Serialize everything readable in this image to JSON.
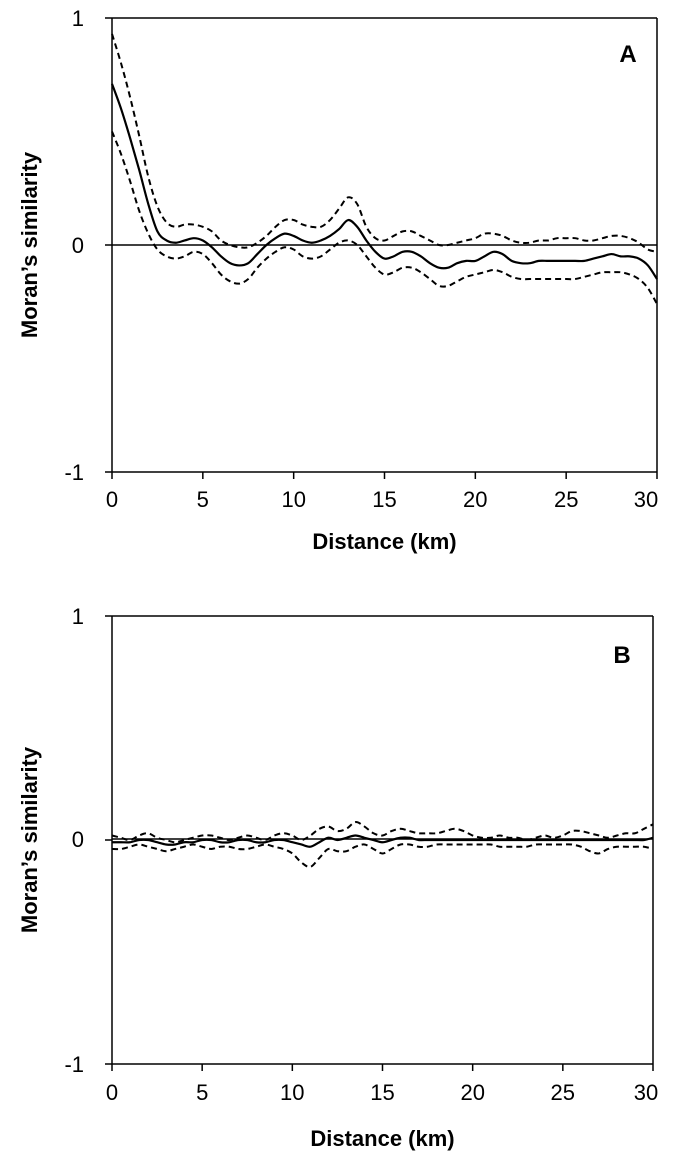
{
  "chart_data": [
    {
      "type": "line",
      "panel_label": "A",
      "xlabel": "Distance (km)",
      "ylabel": "Moran’s similarity",
      "xlim": [
        0,
        30
      ],
      "ylim": [
        -1,
        1
      ],
      "x_ticks": [
        "0",
        "5",
        "10",
        "15",
        "20",
        "25",
        "30"
      ],
      "y_ticks": [
        "1",
        "0",
        "-1"
      ],
      "zero_line": true,
      "grid": false,
      "series": [
        {
          "style": "dashed",
          "x": [
            0,
            0.5,
            1,
            1.5,
            2,
            2.5,
            3,
            3.5,
            4,
            4.5,
            5,
            5.5,
            6,
            6.5,
            7,
            7.5,
            8,
            8.5,
            9,
            9.5,
            10,
            10.5,
            11,
            11.5,
            12,
            12.5,
            13,
            13.5,
            14,
            14.5,
            15,
            15.5,
            16,
            16.5,
            17,
            17.5,
            18,
            18.5,
            19,
            19.5,
            20,
            20.5,
            21,
            21.5,
            22,
            22.5,
            23,
            23.5,
            24,
            24.5,
            25,
            25.5,
            26,
            26.5,
            27,
            27.5,
            28,
            28.5,
            29,
            29.5,
            30
          ],
          "y": [
            0.93,
            0.8,
            0.65,
            0.48,
            0.3,
            0.17,
            0.1,
            0.08,
            0.09,
            0.09,
            0.08,
            0.06,
            0.02,
            0.0,
            -0.01,
            -0.01,
            0.01,
            0.04,
            0.08,
            0.11,
            0.11,
            0.09,
            0.08,
            0.08,
            0.11,
            0.16,
            0.21,
            0.18,
            0.08,
            0.03,
            0.02,
            0.04,
            0.06,
            0.06,
            0.04,
            0.02,
            0.0,
            0.0,
            0.01,
            0.02,
            0.03,
            0.05,
            0.05,
            0.04,
            0.02,
            0.01,
            0.01,
            0.02,
            0.02,
            0.03,
            0.03,
            0.03,
            0.02,
            0.02,
            0.03,
            0.04,
            0.04,
            0.03,
            0.01,
            -0.02,
            -0.03
          ]
        },
        {
          "style": "solid",
          "x": [
            0,
            0.5,
            1,
            1.5,
            2,
            2.5,
            3,
            3.5,
            4,
            4.5,
            5,
            5.5,
            6,
            6.5,
            7,
            7.5,
            8,
            8.5,
            9,
            9.5,
            10,
            10.5,
            11,
            11.5,
            12,
            12.5,
            13,
            13.5,
            14,
            14.5,
            15,
            15.5,
            16,
            16.5,
            17,
            17.5,
            18,
            18.5,
            19,
            19.5,
            20,
            20.5,
            21,
            21.5,
            22,
            22.5,
            23,
            23.5,
            24,
            24.5,
            25,
            25.5,
            26,
            26.5,
            27,
            27.5,
            28,
            28.5,
            29,
            29.5,
            30
          ],
          "y": [
            0.71,
            0.6,
            0.47,
            0.33,
            0.18,
            0.06,
            0.02,
            0.01,
            0.02,
            0.03,
            0.02,
            -0.01,
            -0.05,
            -0.08,
            -0.09,
            -0.08,
            -0.04,
            0.0,
            0.03,
            0.05,
            0.04,
            0.02,
            0.01,
            0.02,
            0.04,
            0.07,
            0.11,
            0.08,
            0.02,
            -0.03,
            -0.06,
            -0.05,
            -0.03,
            -0.03,
            -0.05,
            -0.08,
            -0.1,
            -0.1,
            -0.08,
            -0.07,
            -0.07,
            -0.05,
            -0.03,
            -0.04,
            -0.07,
            -0.08,
            -0.08,
            -0.07,
            -0.07,
            -0.07,
            -0.07,
            -0.07,
            -0.07,
            -0.06,
            -0.05,
            -0.04,
            -0.05,
            -0.05,
            -0.06,
            -0.09,
            -0.15
          ]
        },
        {
          "style": "dashed",
          "x": [
            0,
            0.5,
            1,
            1.5,
            2,
            2.5,
            3,
            3.5,
            4,
            4.5,
            5,
            5.5,
            6,
            6.5,
            7,
            7.5,
            8,
            8.5,
            9,
            9.5,
            10,
            10.5,
            11,
            11.5,
            12,
            12.5,
            13,
            13.5,
            14,
            14.5,
            15,
            15.5,
            16,
            16.5,
            17,
            17.5,
            18,
            18.5,
            19,
            19.5,
            20,
            20.5,
            21,
            21.5,
            22,
            22.5,
            23,
            23.5,
            24,
            24.5,
            25,
            25.5,
            26,
            26.5,
            27,
            27.5,
            28,
            28.5,
            29,
            29.5,
            30
          ],
          "y": [
            0.5,
            0.4,
            0.28,
            0.15,
            0.05,
            -0.02,
            -0.05,
            -0.06,
            -0.05,
            -0.03,
            -0.04,
            -0.08,
            -0.13,
            -0.16,
            -0.17,
            -0.15,
            -0.1,
            -0.06,
            -0.03,
            -0.01,
            -0.02,
            -0.05,
            -0.06,
            -0.05,
            -0.02,
            0.01,
            0.02,
            0.0,
            -0.05,
            -0.1,
            -0.13,
            -0.12,
            -0.1,
            -0.1,
            -0.12,
            -0.15,
            -0.18,
            -0.18,
            -0.16,
            -0.14,
            -0.13,
            -0.12,
            -0.11,
            -0.12,
            -0.14,
            -0.15,
            -0.15,
            -0.15,
            -0.15,
            -0.15,
            -0.15,
            -0.15,
            -0.14,
            -0.13,
            -0.12,
            -0.12,
            -0.12,
            -0.13,
            -0.15,
            -0.19,
            -0.26
          ]
        }
      ]
    },
    {
      "type": "line",
      "panel_label": "B",
      "xlabel": "Distance (km)",
      "ylabel": "Moran’s similarity",
      "xlim": [
        0,
        30
      ],
      "ylim": [
        -1,
        1
      ],
      "x_ticks": [
        "0",
        "5",
        "10",
        "15",
        "20",
        "25",
        "30"
      ],
      "y_ticks": [
        "1",
        "0",
        "-1"
      ],
      "zero_line": true,
      "grid": false,
      "series": [
        {
          "style": "dashed",
          "x": [
            0,
            0.5,
            1,
            1.5,
            2,
            2.5,
            3,
            3.5,
            4,
            4.5,
            5,
            5.5,
            6,
            6.5,
            7,
            7.5,
            8,
            8.5,
            9,
            9.5,
            10,
            10.5,
            11,
            11.5,
            12,
            12.5,
            13,
            13.5,
            14,
            14.5,
            15,
            15.5,
            16,
            16.5,
            17,
            17.5,
            18,
            18.5,
            19,
            19.5,
            20,
            20.5,
            21,
            21.5,
            22,
            22.5,
            23,
            23.5,
            24,
            24.5,
            25,
            25.5,
            26,
            26.5,
            27,
            27.5,
            28,
            28.5,
            29,
            29.5,
            30
          ],
          "y": [
            0.02,
            0.01,
            0.0,
            0.02,
            0.03,
            0.01,
            0.0,
            -0.01,
            0.0,
            0.01,
            0.02,
            0.02,
            0.01,
            0.0,
            0.01,
            0.02,
            0.01,
            0.0,
            0.02,
            0.03,
            0.02,
            0.0,
            0.02,
            0.05,
            0.06,
            0.04,
            0.05,
            0.08,
            0.06,
            0.03,
            0.02,
            0.04,
            0.05,
            0.04,
            0.03,
            0.03,
            0.03,
            0.04,
            0.05,
            0.04,
            0.02,
            0.01,
            0.01,
            0.02,
            0.01,
            0.01,
            0.0,
            0.01,
            0.02,
            0.01,
            0.02,
            0.04,
            0.04,
            0.03,
            0.02,
            0.01,
            0.02,
            0.03,
            0.03,
            0.05,
            0.07
          ]
        },
        {
          "style": "solid",
          "x": [
            0,
            0.5,
            1,
            1.5,
            2,
            2.5,
            3,
            3.5,
            4,
            4.5,
            5,
            5.5,
            6,
            6.5,
            7,
            7.5,
            8,
            8.5,
            9,
            9.5,
            10,
            10.5,
            11,
            11.5,
            12,
            12.5,
            13,
            13.5,
            14,
            14.5,
            15,
            15.5,
            16,
            16.5,
            17,
            17.5,
            18,
            18.5,
            19,
            19.5,
            20,
            20.5,
            21,
            21.5,
            22,
            22.5,
            23,
            23.5,
            24,
            24.5,
            25,
            25.5,
            26,
            26.5,
            27,
            27.5,
            28,
            28.5,
            29,
            29.5,
            30
          ],
          "y": [
            -0.01,
            -0.01,
            -0.01,
            0.0,
            0.0,
            -0.01,
            -0.02,
            -0.02,
            -0.01,
            -0.01,
            0.0,
            0.0,
            -0.01,
            -0.01,
            0.0,
            0.0,
            -0.01,
            -0.01,
            0.0,
            0.0,
            -0.01,
            -0.02,
            -0.03,
            -0.01,
            0.01,
            0.0,
            0.01,
            0.02,
            0.01,
            0.0,
            -0.01,
            0.0,
            0.01,
            0.01,
            0.0,
            0.0,
            0.0,
            0.0,
            0.0,
            0.0,
            0.0,
            0.0,
            0.0,
            0.0,
            0.0,
            0.0,
            0.0,
            0.0,
            0.0,
            0.0,
            0.0,
            0.0,
            0.0,
            0.0,
            0.0,
            0.0,
            0.0,
            0.0,
            0.0,
            0.0,
            0.01
          ]
        },
        {
          "style": "dashed",
          "x": [
            0,
            0.5,
            1,
            1.5,
            2,
            2.5,
            3,
            3.5,
            4,
            4.5,
            5,
            5.5,
            6,
            6.5,
            7,
            7.5,
            8,
            8.5,
            9,
            9.5,
            10,
            10.5,
            11,
            11.5,
            12,
            12.5,
            13,
            13.5,
            14,
            14.5,
            15,
            15.5,
            16,
            16.5,
            17,
            17.5,
            18,
            18.5,
            19,
            19.5,
            20,
            20.5,
            21,
            21.5,
            22,
            22.5,
            23,
            23.5,
            24,
            24.5,
            25,
            25.5,
            26,
            26.5,
            27,
            27.5,
            28,
            28.5,
            29,
            29.5,
            30
          ],
          "y": [
            -0.04,
            -0.04,
            -0.03,
            -0.02,
            -0.03,
            -0.04,
            -0.05,
            -0.04,
            -0.03,
            -0.02,
            -0.03,
            -0.04,
            -0.03,
            -0.03,
            -0.04,
            -0.04,
            -0.03,
            -0.02,
            -0.03,
            -0.04,
            -0.06,
            -0.1,
            -0.12,
            -0.08,
            -0.04,
            -0.05,
            -0.05,
            -0.03,
            -0.02,
            -0.04,
            -0.06,
            -0.04,
            -0.02,
            -0.02,
            -0.03,
            -0.03,
            -0.02,
            -0.02,
            -0.02,
            -0.02,
            -0.02,
            -0.02,
            -0.02,
            -0.03,
            -0.03,
            -0.03,
            -0.03,
            -0.02,
            -0.02,
            -0.02,
            -0.02,
            -0.02,
            -0.03,
            -0.05,
            -0.06,
            -0.04,
            -0.03,
            -0.03,
            -0.03,
            -0.03,
            -0.04
          ]
        }
      ]
    }
  ]
}
